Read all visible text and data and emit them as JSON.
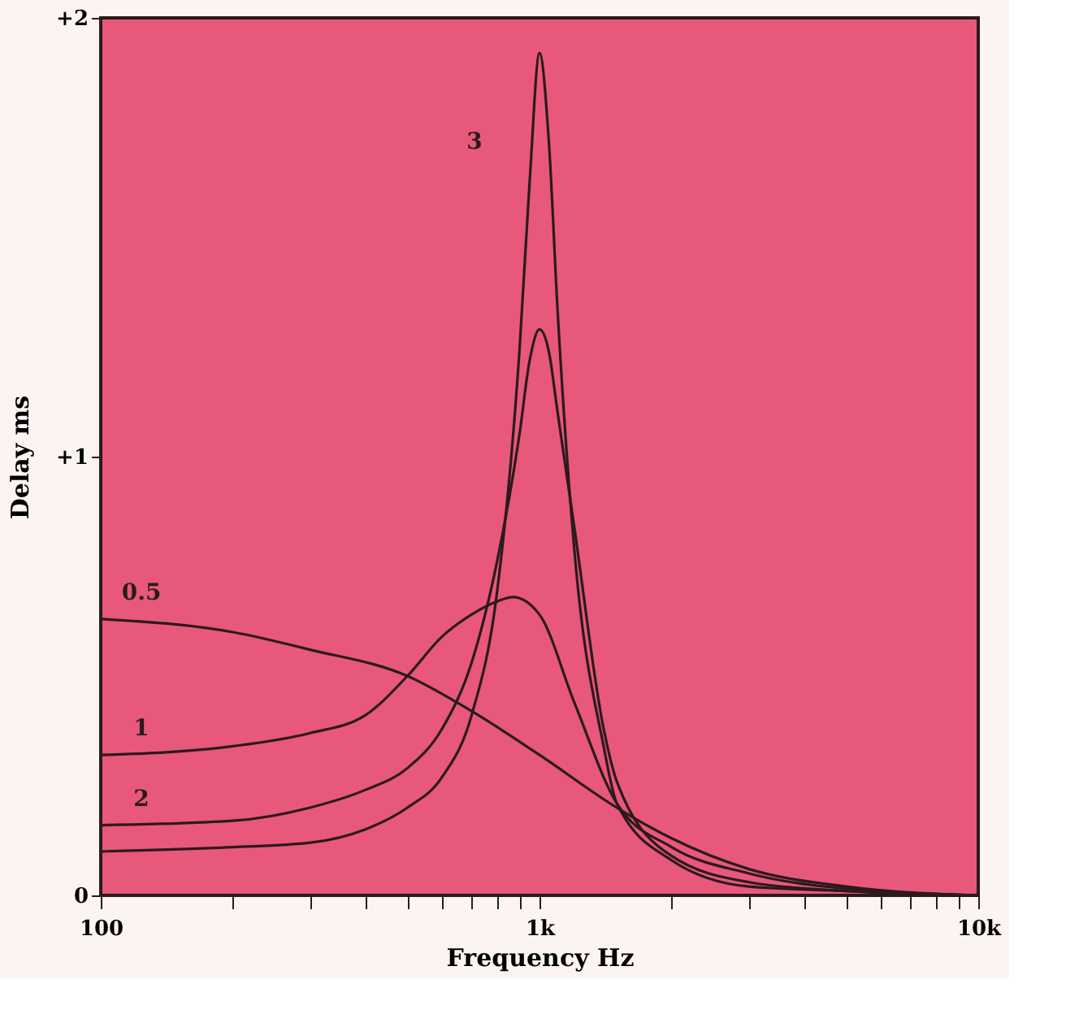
{
  "chart_data": {
    "type": "line",
    "xlabel": "Frequency Hz",
    "ylabel": "Delay ms",
    "log": "x",
    "xlim": [
      100,
      10000
    ],
    "ylim": [
      0,
      2
    ],
    "xticks": [
      {
        "value": 100,
        "label": "100"
      },
      {
        "value": 200,
        "label": null
      },
      {
        "value": 300,
        "label": null
      },
      {
        "value": 400,
        "label": null
      },
      {
        "value": 500,
        "label": null
      },
      {
        "value": 600,
        "label": null
      },
      {
        "value": 700,
        "label": null
      },
      {
        "value": 800,
        "label": null
      },
      {
        "value": 900,
        "label": null
      },
      {
        "value": 1000,
        "label": "1k"
      },
      {
        "value": 2000,
        "label": null
      },
      {
        "value": 3000,
        "label": null
      },
      {
        "value": 4000,
        "label": null
      },
      {
        "value": 5000,
        "label": null
      },
      {
        "value": 6000,
        "label": null
      },
      {
        "value": 7000,
        "label": null
      },
      {
        "value": 8000,
        "label": null
      },
      {
        "value": 9000,
        "label": null
      },
      {
        "value": 10000,
        "label": "10k"
      }
    ],
    "yticks": [
      0,
      {
        "value": 1,
        "label": "+1"
      },
      {
        "value": 2,
        "label": "+2"
      }
    ],
    "grid": false,
    "marker": "none",
    "line_style": "solid",
    "series": [
      {
        "name": "0.5",
        "color": "#2b1a1e",
        "x": [
          100,
          200,
          300,
          500,
          700,
          1000,
          1500,
          2000,
          3000,
          5000,
          10000
        ],
        "values": [
          0.63,
          0.6,
          0.56,
          0.5,
          0.42,
          0.32,
          0.2,
          0.13,
          0.06,
          0.02,
          0.0
        ]
      },
      {
        "name": "1",
        "color": "#2b1a1e",
        "x": [
          100,
          200,
          300,
          400,
          500,
          600,
          700,
          800,
          870,
          1000,
          1200,
          1500,
          2000,
          3000,
          5000,
          10000
        ],
        "values": [
          0.32,
          0.34,
          0.37,
          0.41,
          0.5,
          0.59,
          0.64,
          0.67,
          0.68,
          0.64,
          0.44,
          0.21,
          0.11,
          0.05,
          0.015,
          0.0
        ]
      },
      {
        "name": "2",
        "color": "#2b1a1e",
        "x": [
          100,
          200,
          300,
          400,
          500,
          600,
          700,
          800,
          900,
          950,
          1000,
          1050,
          1100,
          1200,
          1400,
          1500,
          2000,
          3000,
          5000,
          10000
        ],
        "values": [
          0.16,
          0.17,
          0.2,
          0.24,
          0.29,
          0.38,
          0.53,
          0.76,
          1.05,
          1.22,
          1.29,
          1.24,
          1.1,
          0.84,
          0.38,
          0.26,
          0.09,
          0.03,
          0.01,
          0.0
        ]
      },
      {
        "name": "3",
        "color": "#2b1a1e",
        "x": [
          100,
          200,
          300,
          400,
          500,
          600,
          700,
          800,
          900,
          950,
          1000,
          1050,
          1100,
          1200,
          1400,
          1500,
          2000,
          3000,
          5000,
          10000
        ],
        "values": [
          0.1,
          0.11,
          0.12,
          0.15,
          0.2,
          0.27,
          0.41,
          0.69,
          1.24,
          1.63,
          1.92,
          1.72,
          1.33,
          0.79,
          0.34,
          0.21,
          0.08,
          0.02,
          0.01,
          0.0
        ]
      }
    ]
  }
}
